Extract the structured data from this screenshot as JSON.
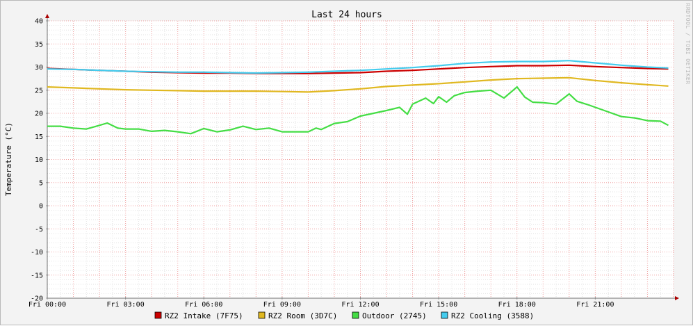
{
  "chart_data": {
    "type": "line",
    "title": "Last 24 hours",
    "ylabel": "Temperature (°C)",
    "xlabel": "",
    "watermark": "RRDTOOL / TOBI OETIKER",
    "ylim": [
      -20,
      40
    ],
    "yticks": [
      40,
      35,
      30,
      25,
      20,
      15,
      10,
      5,
      0,
      -5,
      -10,
      -15,
      -20
    ],
    "xlim": [
      0,
      24
    ],
    "xticks": [
      {
        "label": "Fri 00:00",
        "hour": 0
      },
      {
        "label": "Fri 03:00",
        "hour": 3
      },
      {
        "label": "Fri 06:00",
        "hour": 6
      },
      {
        "label": "Fri 09:00",
        "hour": 9
      },
      {
        "label": "Fri 12:00",
        "hour": 12
      },
      {
        "label": "Fri 15:00",
        "hour": 15
      },
      {
        "label": "Fri 18:00",
        "hour": 18
      },
      {
        "label": "Fri 21:00",
        "hour": 21
      }
    ],
    "grid": true,
    "legend_position": "bottom",
    "series": [
      {
        "name": "RZ2 Intake (7F75)",
        "color": "#cc0000",
        "x": [
          0,
          1,
          2,
          3,
          4,
          5,
          6,
          7,
          8,
          9,
          10,
          11,
          12,
          13,
          14,
          15,
          16,
          17,
          18,
          19,
          20,
          21,
          22,
          23,
          23.8
        ],
        "values": [
          29.7,
          29.5,
          29.3,
          29.1,
          28.9,
          28.8,
          28.7,
          28.7,
          28.6,
          28.6,
          28.6,
          28.7,
          28.8,
          29.1,
          29.3,
          29.6,
          29.9,
          30.1,
          30.3,
          30.3,
          30.4,
          30.1,
          29.9,
          29.7,
          29.6
        ]
      },
      {
        "name": "RZ2 Room (3D7C)",
        "color": "#e0b820",
        "x": [
          0,
          1,
          2,
          3,
          4,
          5,
          6,
          7,
          8,
          9,
          10,
          11,
          12,
          13,
          14,
          15,
          16,
          17,
          18,
          19,
          20,
          21,
          22,
          23,
          23.8
        ],
        "values": [
          25.7,
          25.5,
          25.3,
          25.1,
          25.0,
          24.9,
          24.8,
          24.8,
          24.8,
          24.7,
          24.6,
          24.9,
          25.3,
          25.8,
          26.1,
          26.4,
          26.8,
          27.2,
          27.5,
          27.6,
          27.7,
          27.1,
          26.6,
          26.2,
          25.9
        ]
      },
      {
        "name": "Outdoor (2745)",
        "color": "#44dd44",
        "x": [
          0,
          0.5,
          1,
          1.5,
          2,
          2.3,
          2.7,
          3,
          3.5,
          4,
          4.5,
          5,
          5.5,
          6,
          6.5,
          7,
          7.5,
          8,
          8.5,
          9,
          9.5,
          10,
          10.3,
          10.5,
          11,
          11.5,
          12,
          12.5,
          13,
          13.5,
          13.8,
          14,
          14.5,
          14.8,
          15,
          15.3,
          15.6,
          16,
          16.5,
          17,
          17.5,
          18,
          18.3,
          18.6,
          19,
          19.5,
          20,
          20.3,
          20.7,
          21,
          21.5,
          22,
          22.5,
          23,
          23.5,
          23.8
        ],
        "values": [
          17.2,
          17.2,
          16.8,
          16.6,
          17.4,
          17.9,
          16.8,
          16.6,
          16.6,
          16.1,
          16.3,
          16.0,
          15.6,
          16.7,
          16.0,
          16.4,
          17.2,
          16.5,
          16.8,
          16.0,
          16.0,
          16.0,
          16.8,
          16.5,
          17.8,
          18.2,
          19.4,
          20.0,
          20.6,
          21.3,
          19.8,
          22.0,
          23.3,
          22.1,
          23.6,
          22.4,
          23.8,
          24.5,
          24.8,
          25.0,
          23.3,
          25.7,
          23.5,
          22.4,
          22.3,
          22.0,
          24.2,
          22.6,
          21.9,
          21.3,
          20.3,
          19.3,
          19.0,
          18.4,
          18.3,
          17.4
        ]
      },
      {
        "name": "RZ2 Cooling (3588)",
        "color": "#44ccee",
        "x": [
          0,
          1,
          2,
          3,
          4,
          5,
          6,
          7,
          8,
          9,
          10,
          11,
          12,
          13,
          14,
          15,
          16,
          17,
          18,
          19,
          20,
          21,
          22,
          23,
          23.8
        ],
        "values": [
          29.6,
          29.5,
          29.3,
          29.1,
          29.0,
          28.9,
          28.9,
          28.8,
          28.7,
          28.8,
          28.9,
          29.1,
          29.3,
          29.6,
          29.9,
          30.3,
          30.8,
          31.1,
          31.2,
          31.2,
          31.4,
          30.9,
          30.4,
          30.0,
          29.8
        ]
      }
    ]
  }
}
